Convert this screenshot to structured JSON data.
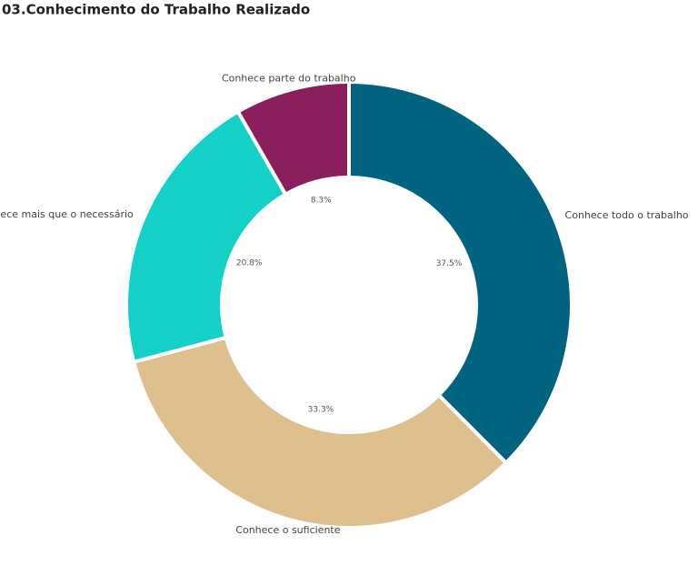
{
  "chart_data": {
    "type": "donut",
    "title": "03.Conhecimento do Trabalho Realizado",
    "categories": [
      "Conhece todo o trabalho",
      "Conhece o suficiente",
      "Conhece mais que o necessário",
      "Conhece parte do trabalho"
    ],
    "values": [
      37.5,
      33.3,
      20.8,
      8.3
    ],
    "value_labels": [
      "37.5%",
      "33.3%",
      "20.8%",
      "8.3%"
    ],
    "colors": [
      "#00637f",
      "#e0bf8f",
      "#14d1c8",
      "#8b1f5e"
    ]
  }
}
